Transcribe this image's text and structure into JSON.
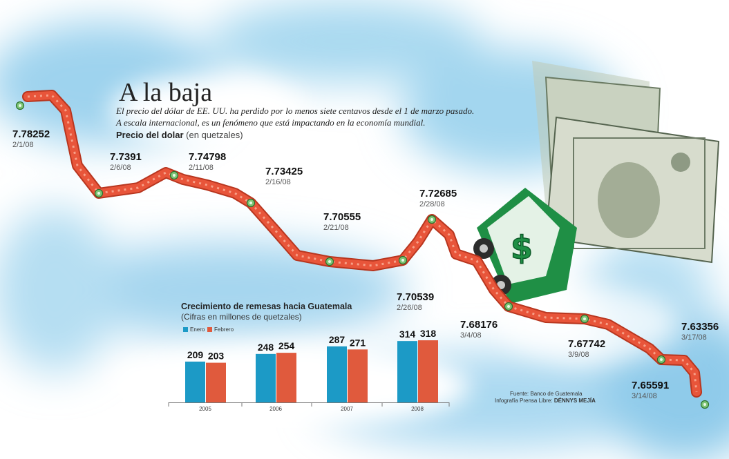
{
  "title": "A la baja",
  "subtitle_lines": [
    "El precio del dólar de EE. UU. ha perdido por lo menos siete centavos desde el 1 de marzo pasado.",
    "A escala internacional, es un fenómeno que está impactando en la economía mundial."
  ],
  "series_label": "Precio del dolar",
  "series_unit": "(en quetzales)",
  "colors": {
    "rail": "#e8553a",
    "dot": "#7cc576",
    "enero": "#1c9ac6",
    "febrero": "#e05a3d",
    "axis": "#777777"
  },
  "icon_names": [
    "money-cart-illustration",
    "dollar-bills-illustration",
    "roller-coaster-track"
  ],
  "chart_data": [
    {
      "type": "line",
      "title": "Precio del dolar",
      "ylabel": "(en quetzales)",
      "points": [
        {
          "date": "2/1/08",
          "value": "7.78252"
        },
        {
          "date": "2/6/08",
          "value": "7.7391"
        },
        {
          "date": "2/11/08",
          "value": "7.74798"
        },
        {
          "date": "2/16/08",
          "value": "7.73425"
        },
        {
          "date": "2/21/08",
          "value": "7.70555"
        },
        {
          "date": "2/26/08",
          "value": "7.70539"
        },
        {
          "date": "2/28/08",
          "value": "7.72685"
        },
        {
          "date": "3/4/08",
          "value": "7.68176"
        },
        {
          "date": "3/9/08",
          "value": "7.67742"
        },
        {
          "date": "3/14/08",
          "value": "7.65591"
        },
        {
          "date": "3/17/08",
          "value": "7.63356"
        }
      ]
    },
    {
      "type": "bar",
      "title": "Crecimiento de remesas hacia Guatemala",
      "subtitle": "(Cifras en millones de quetzales)",
      "categories": [
        "2005",
        "2006",
        "2007",
        "2008"
      ],
      "series": [
        {
          "name": "Enero",
          "values": [
            209,
            248,
            287,
            314
          ]
        },
        {
          "name": "Febrero",
          "values": [
            203,
            254,
            271,
            318
          ]
        }
      ],
      "legend": "top-left"
    }
  ],
  "credits": {
    "source": "Fuente: Banco de Guatemala",
    "prefix": "Infografía Prensa Libre: ",
    "author": "DÉNNYS MEJÍA"
  }
}
